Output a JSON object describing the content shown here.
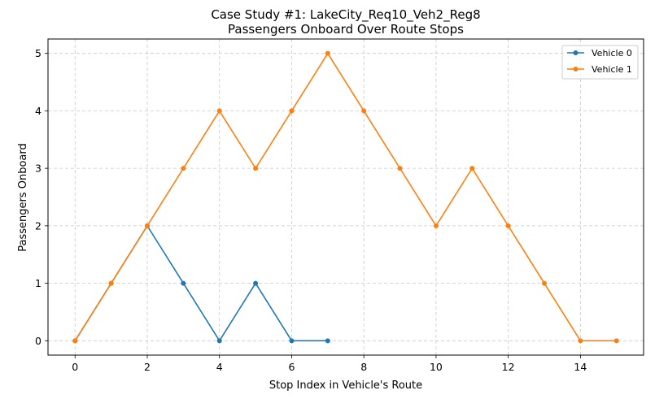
{
  "chart_data": {
    "type": "line",
    "title_line1": "Case Study #1: LakeCity_Req10_Veh2_Reg8",
    "title_line2": "Passengers Onboard Over Route Stops",
    "xlabel": "Stop Index in Vehicle's Route",
    "ylabel": "Passengers Onboard",
    "xlim": [
      -0.75,
      15.75
    ],
    "ylim": [
      -0.25,
      5.25
    ],
    "xticks": [
      0,
      2,
      4,
      6,
      8,
      10,
      12,
      14
    ],
    "yticks": [
      0,
      1,
      2,
      3,
      4,
      5
    ],
    "grid": true,
    "grid_style": "dashed",
    "legend_position": "upper right",
    "series": [
      {
        "name": "Vehicle 0",
        "color": "#1f77b4",
        "marker": "circle",
        "x": [
          0,
          1,
          2,
          3,
          4,
          5,
          6,
          7
        ],
        "y": [
          0,
          1,
          2,
          1,
          0,
          1,
          0,
          0
        ]
      },
      {
        "name": "Vehicle 1",
        "color": "#ff7f0e",
        "marker": "circle",
        "x": [
          0,
          1,
          2,
          3,
          4,
          5,
          6,
          7,
          8,
          9,
          10,
          11,
          12,
          13,
          14,
          15
        ],
        "y": [
          0,
          1,
          2,
          3,
          4,
          3,
          4,
          5,
          4,
          3,
          2,
          3,
          2,
          1,
          0,
          0
        ]
      }
    ]
  }
}
